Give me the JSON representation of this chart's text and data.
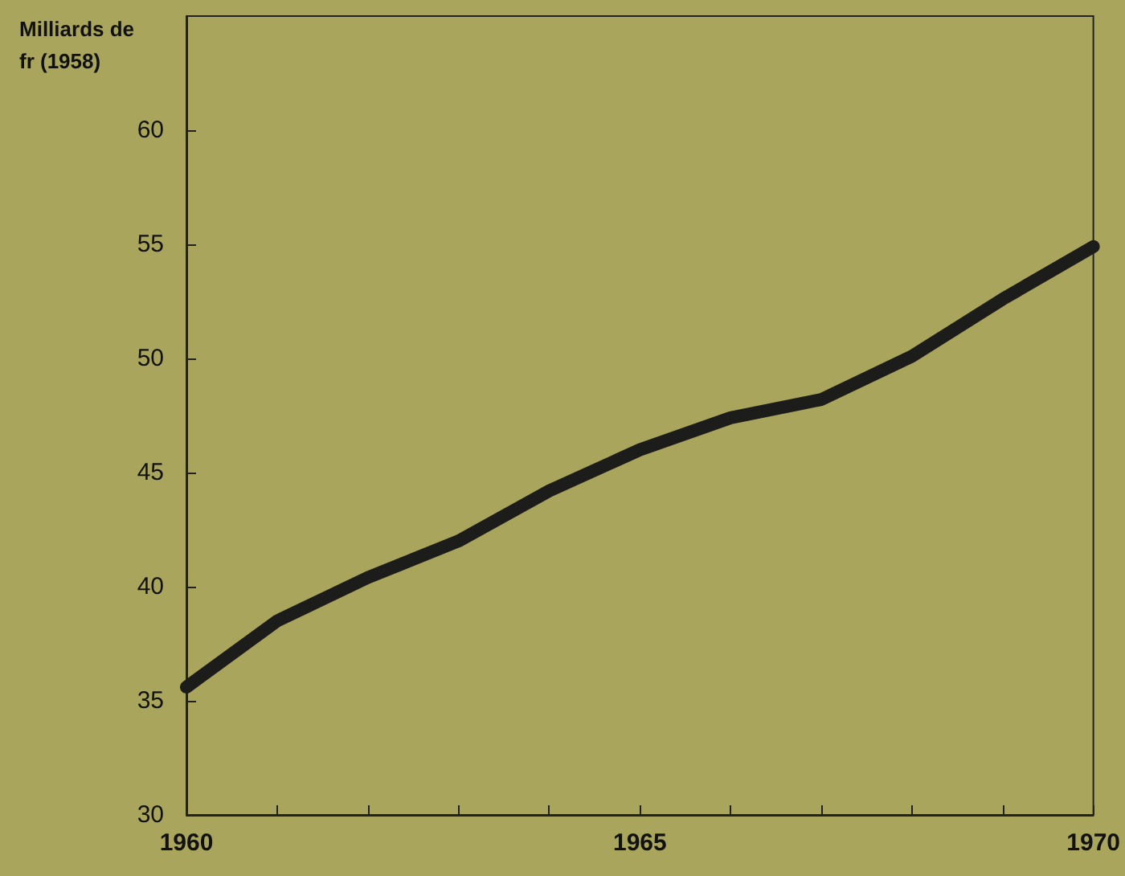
{
  "chart_data": {
    "type": "line",
    "ylabel": "Milliards de fr (1958)",
    "x": [
      1960,
      1961,
      1962,
      1963,
      1964,
      1965,
      1966,
      1967,
      1968,
      1969,
      1970
    ],
    "series": [
      {
        "color": "#1c1c1a",
        "values": [
          35.6,
          38.5,
          40.4,
          42.0,
          44.2,
          46.0,
          47.4,
          48.2,
          50.1,
          52.6,
          54.9
        ]
      }
    ],
    "xlim": [
      1960,
      1970
    ],
    "xticks": [
      1960,
      {
        "value": 1961,
        "label": null
      },
      {
        "value": 1962,
        "label": null
      },
      {
        "value": 1963,
        "label": null
      },
      {
        "value": 1964,
        "label": null
      },
      1965,
      {
        "value": 1966,
        "label": null
      },
      {
        "value": 1967,
        "label": null
      },
      {
        "value": 1968,
        "label": null
      },
      {
        "value": 1969,
        "label": null
      },
      1970
    ],
    "ylim": [
      30,
      65
    ],
    "yticks": [
      30,
      35,
      40,
      45,
      50,
      55,
      60
    ],
    "grid": false,
    "line_style": "solid"
  }
}
